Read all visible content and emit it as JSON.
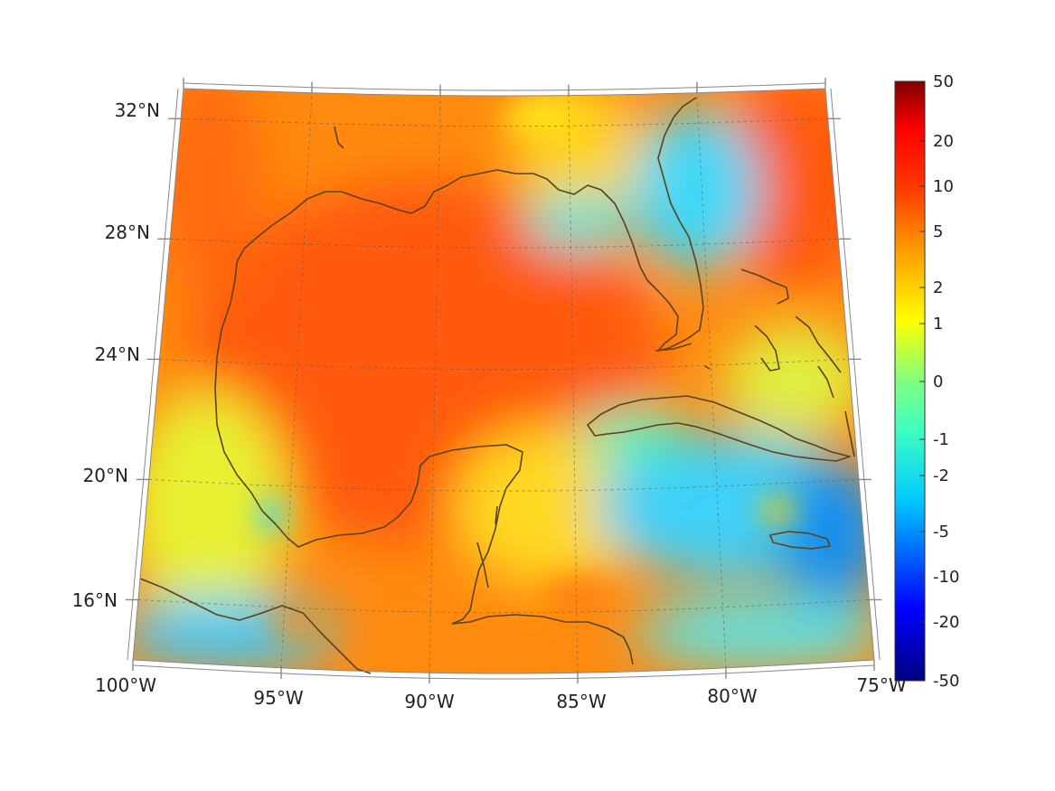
{
  "map": {
    "lon_range": [
      -100,
      -75
    ],
    "lat_range": [
      14,
      33
    ],
    "graticule": "dashed",
    "colormap": "jet",
    "lon_labels": [
      {
        "lon": -100,
        "text": "100°W"
      },
      {
        "lon": -95,
        "text": "95°W"
      },
      {
        "lon": -90,
        "text": "90°W"
      },
      {
        "lon": -85,
        "text": "85°W"
      },
      {
        "lon": -80,
        "text": "80°W"
      },
      {
        "lon": -75,
        "text": "75°W"
      }
    ],
    "lat_labels": [
      {
        "lat": 16,
        "text": "16°N"
      },
      {
        "lat": 20,
        "text": "20°N"
      },
      {
        "lat": 24,
        "text": "24°N"
      },
      {
        "lat": 28,
        "text": "28°N"
      },
      {
        "lat": 32,
        "text": "32°N"
      }
    ]
  },
  "colorbar": {
    "scale": "symmetric log",
    "ticks": [
      "50",
      "20",
      "10",
      "5",
      "2",
      "1",
      "0",
      "-1",
      "-2",
      "-5",
      "-10",
      "-20",
      "-50"
    ]
  },
  "colors": {
    "coastline": "#5a4220",
    "frame": "#888888"
  }
}
